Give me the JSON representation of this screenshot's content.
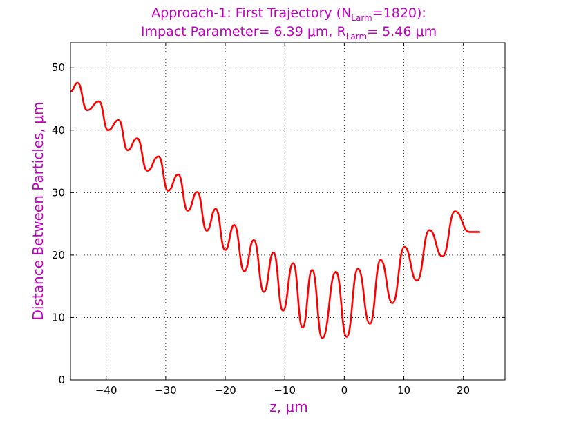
{
  "chart_data": {
    "type": "line",
    "title_line1": "Approach-1: First Trajectory (N",
    "title_line1_sub": "Larm",
    "title_line1_tail": "=1820):",
    "title_line2_a": "Impact Parameter= 6.39 μm, R",
    "title_line2_sub": "Larm",
    "title_line2_b": "= 5.46 μm",
    "xlabel": "z, μm",
    "ylabel": "Distance Between Particles, μm",
    "xlim": [
      -46,
      27
    ],
    "ylim": [
      0,
      54
    ],
    "xticks": [
      -40,
      -30,
      -20,
      -10,
      0,
      10,
      20
    ],
    "xtick_labels": [
      "−40",
      "−30",
      "−20",
      "−10",
      "0",
      "10",
      "20"
    ],
    "yticks": [
      0,
      10,
      20,
      30,
      40,
      50
    ],
    "ytick_labels": [
      "0",
      "10",
      "20",
      "30",
      "40",
      "50"
    ],
    "grid": true,
    "series": [
      {
        "color": "#ff0000",
        "x": [
          -46.0,
          -44.8,
          -43.2,
          -41.2,
          -39.7,
          -37.9,
          -36.4,
          -34.8,
          -33.1,
          -31.2,
          -29.6,
          -27.9,
          -26.3,
          -24.7,
          -23.1,
          -21.6,
          -20.0,
          -18.5,
          -16.8,
          -15.2,
          -13.5,
          -11.9,
          -10.3,
          -8.6,
          -7.0,
          -5.4,
          -3.7,
          -1.4,
          0.4,
          2.3,
          4.3,
          6.1,
          8.1,
          10.1,
          12.2,
          14.3,
          16.5,
          18.6,
          21.0,
          22.8
        ],
        "y": [
          46.2,
          47.6,
          43.2,
          44.6,
          40.0,
          41.6,
          36.8,
          38.7,
          33.5,
          35.8,
          30.3,
          32.9,
          27.1,
          30.1,
          23.9,
          27.4,
          20.8,
          24.8,
          17.4,
          22.4,
          14.1,
          20.4,
          11.1,
          18.7,
          8.4,
          17.6,
          6.7,
          17.3,
          6.9,
          17.8,
          9.0,
          19.2,
          12.3,
          21.3,
          15.9,
          24.0,
          19.8,
          27.0,
          23.7,
          23.7
        ]
      }
    ]
  }
}
